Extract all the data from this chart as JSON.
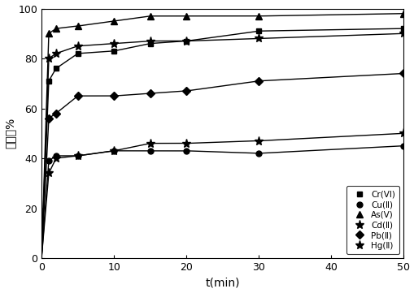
{
  "title": "",
  "xlabel": "t(min)",
  "ylabel": "吸附率%",
  "xlim": [
    0,
    50
  ],
  "ylim": [
    0,
    100
  ],
  "xticks": [
    0,
    10,
    20,
    30,
    40,
    50
  ],
  "yticks": [
    0,
    20,
    40,
    60,
    80,
    100
  ],
  "series": {
    "Cr(VI)": {
      "t": [
        0,
        1,
        2,
        5,
        10,
        15,
        20,
        30,
        50
      ],
      "y": [
        0,
        71,
        76,
        82,
        83,
        86,
        87,
        91,
        92
      ],
      "marker": "s",
      "marker_size": 5,
      "label": "Cr(VI)"
    },
    "Cu(II)": {
      "t": [
        0,
        1,
        2,
        5,
        10,
        15,
        20,
        30,
        50
      ],
      "y": [
        0,
        39,
        41,
        41,
        43,
        43,
        43,
        42,
        45
      ],
      "marker": "o",
      "marker_size": 5,
      "label": "Cu(Ⅱ)"
    },
    "As(V)": {
      "t": [
        0,
        1,
        2,
        5,
        10,
        15,
        20,
        30,
        50
      ],
      "y": [
        0,
        90,
        92,
        93,
        95,
        97,
        97,
        97,
        98
      ],
      "marker": "^",
      "marker_size": 6,
      "label": "As(V)"
    },
    "Cd(II)": {
      "t": [
        0,
        1,
        2,
        5,
        10,
        15,
        20,
        30,
        50
      ],
      "y": [
        0,
        34,
        40,
        41,
        43,
        46,
        46,
        47,
        50
      ],
      "marker": "*",
      "marker_size": 8,
      "label": "Cd(Ⅱ)"
    },
    "Pb(II)": {
      "t": [
        0,
        1,
        2,
        5,
        10,
        15,
        20,
        30,
        50
      ],
      "y": [
        0,
        56,
        58,
        65,
        65,
        66,
        67,
        71,
        74
      ],
      "marker": "D",
      "marker_size": 5,
      "label": "Pb(Ⅱ)"
    },
    "Hg(II)": {
      "t": [
        0,
        1,
        2,
        5,
        10,
        15,
        20,
        30,
        50
      ],
      "y": [
        0,
        80,
        82,
        85,
        86,
        87,
        87,
        88,
        90
      ],
      "marker": "*",
      "marker_size": 8,
      "label": "Hg(Ⅱ)"
    }
  },
  "background_color": "#ffffff",
  "line_color": "#000000",
  "legend_fontsize": 7.5,
  "axis_fontsize": 10,
  "tick_fontsize": 9
}
